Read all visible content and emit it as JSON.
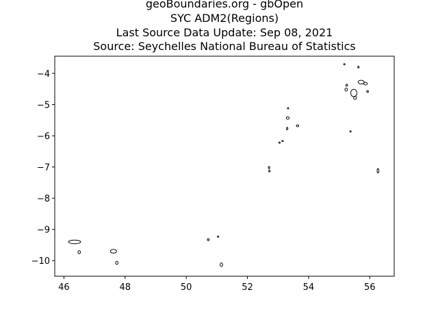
{
  "chart_data": {
    "type": "map",
    "title_lines": [
      "geoBoundaries.org - gbOpen",
      "SYC ADM2(Regions)",
      "Last Source Data Update: Sep 08, 2021",
      "Source: Seychelles National Bureau of Statistics"
    ],
    "xlabel": "",
    "ylabel": "",
    "xlim": [
      45.7,
      56.8
    ],
    "ylim": [
      -10.5,
      -3.45
    ],
    "x_ticks": [
      46,
      48,
      50,
      52,
      54,
      56
    ],
    "x_tick_labels": [
      "46",
      "48",
      "50",
      "52",
      "54",
      "56"
    ],
    "y_ticks": [
      -4,
      -5,
      -6,
      -7,
      -8,
      -9,
      -10
    ],
    "y_tick_labels": [
      "−4",
      "−5",
      "−6",
      "−7",
      "−8",
      "−9",
      "−10"
    ],
    "grid": false,
    "outline_color": "#000000",
    "islands": [
      {
        "lon": 46.35,
        "lat": -9.4,
        "rx": 0.2,
        "ry": 0.06
      },
      {
        "lon": 46.5,
        "lat": -9.73,
        "rx": 0.04,
        "ry": 0.05
      },
      {
        "lon": 47.62,
        "lat": -9.7,
        "rx": 0.1,
        "ry": 0.06
      },
      {
        "lon": 47.73,
        "lat": -10.07,
        "rx": 0.04,
        "ry": 0.05
      },
      {
        "lon": 50.72,
        "lat": -9.33,
        "rx": 0.03,
        "ry": 0.03
      },
      {
        "lon": 51.04,
        "lat": -9.23,
        "rx": 0.02,
        "ry": 0.02
      },
      {
        "lon": 51.15,
        "lat": -10.13,
        "rx": 0.04,
        "ry": 0.06
      },
      {
        "lon": 52.71,
        "lat": -7.02,
        "rx": 0.02,
        "ry": 0.04
      },
      {
        "lon": 52.72,
        "lat": -7.13,
        "rx": 0.02,
        "ry": 0.03
      },
      {
        "lon": 53.05,
        "lat": -6.22,
        "rx": 0.02,
        "ry": 0.02
      },
      {
        "lon": 53.15,
        "lat": -6.17,
        "rx": 0.02,
        "ry": 0.02
      },
      {
        "lon": 53.33,
        "lat": -5.12,
        "rx": 0.02,
        "ry": 0.02
      },
      {
        "lon": 53.32,
        "lat": -5.43,
        "rx": 0.05,
        "ry": 0.04
      },
      {
        "lon": 53.3,
        "lat": -5.77,
        "rx": 0.02,
        "ry": 0.04
      },
      {
        "lon": 53.64,
        "lat": -5.68,
        "rx": 0.04,
        "ry": 0.03
      },
      {
        "lon": 55.17,
        "lat": -3.71,
        "rx": 0.02,
        "ry": 0.02
      },
      {
        "lon": 55.63,
        "lat": -3.8,
        "rx": 0.02,
        "ry": 0.03
      },
      {
        "lon": 55.25,
        "lat": -4.38,
        "rx": 0.03,
        "ry": 0.03
      },
      {
        "lon": 55.23,
        "lat": -4.52,
        "rx": 0.04,
        "ry": 0.05
      },
      {
        "lon": 55.48,
        "lat": -4.63,
        "rx": 0.1,
        "ry": 0.12
      },
      {
        "lon": 55.52,
        "lat": -4.78,
        "rx": 0.05,
        "ry": 0.05
      },
      {
        "lon": 55.72,
        "lat": -4.28,
        "rx": 0.1,
        "ry": 0.06
      },
      {
        "lon": 55.86,
        "lat": -4.33,
        "rx": 0.06,
        "ry": 0.04
      },
      {
        "lon": 55.93,
        "lat": -4.58,
        "rx": 0.03,
        "ry": 0.03
      },
      {
        "lon": 55.37,
        "lat": -5.86,
        "rx": 0.02,
        "ry": 0.02
      },
      {
        "lon": 56.27,
        "lat": -7.12,
        "rx": 0.03,
        "ry": 0.07
      }
    ]
  }
}
